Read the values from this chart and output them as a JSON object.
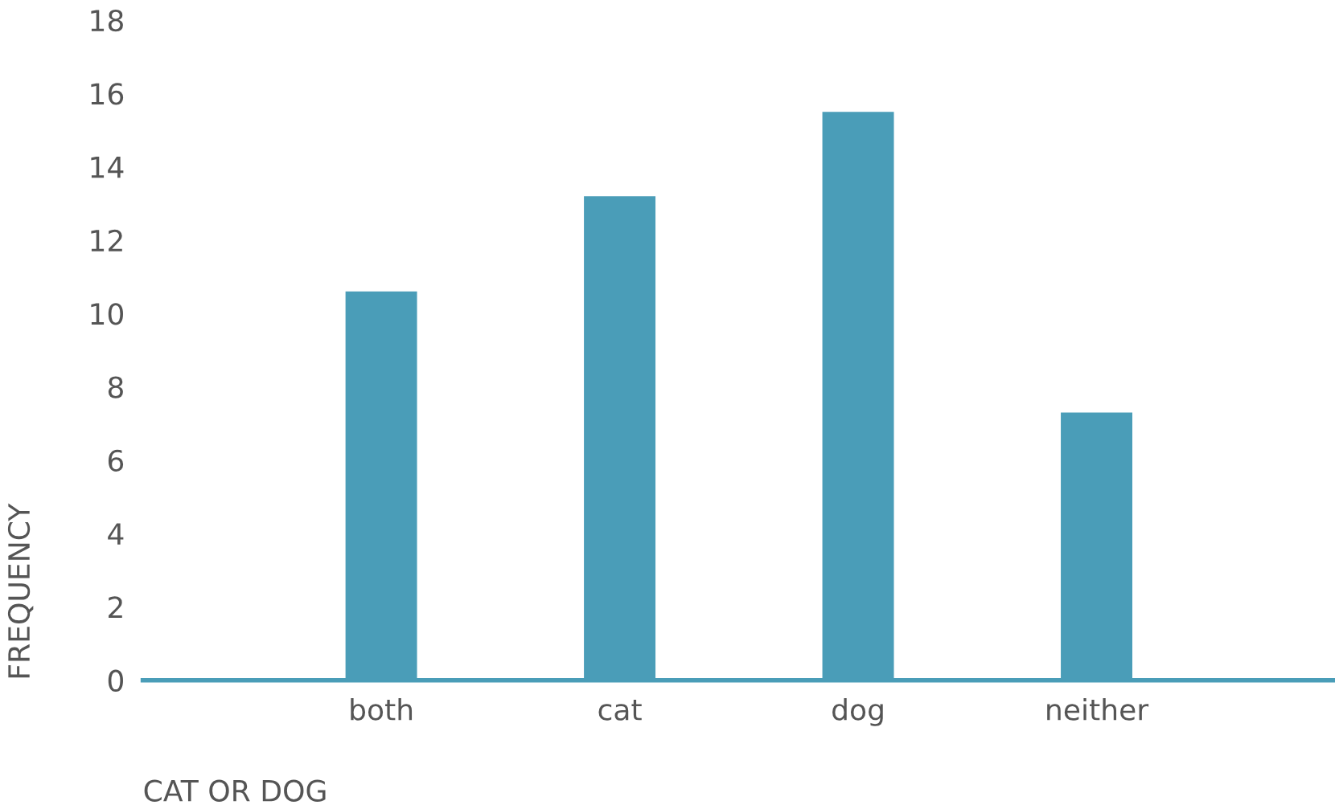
{
  "chart_data": {
    "type": "bar",
    "xlabel": "CAT OR DOG",
    "ylabel": "FREQUENCY",
    "categories": [
      "both",
      "cat",
      "dog",
      "neither"
    ],
    "values": [
      10.6,
      13.2,
      15.5,
      7.3
    ],
    "color": "#4a9db8",
    "ylim": [
      0,
      18
    ],
    "yticks": [
      0,
      2,
      4,
      6,
      8,
      10,
      12,
      14,
      16,
      18
    ],
    "grid": false
  }
}
